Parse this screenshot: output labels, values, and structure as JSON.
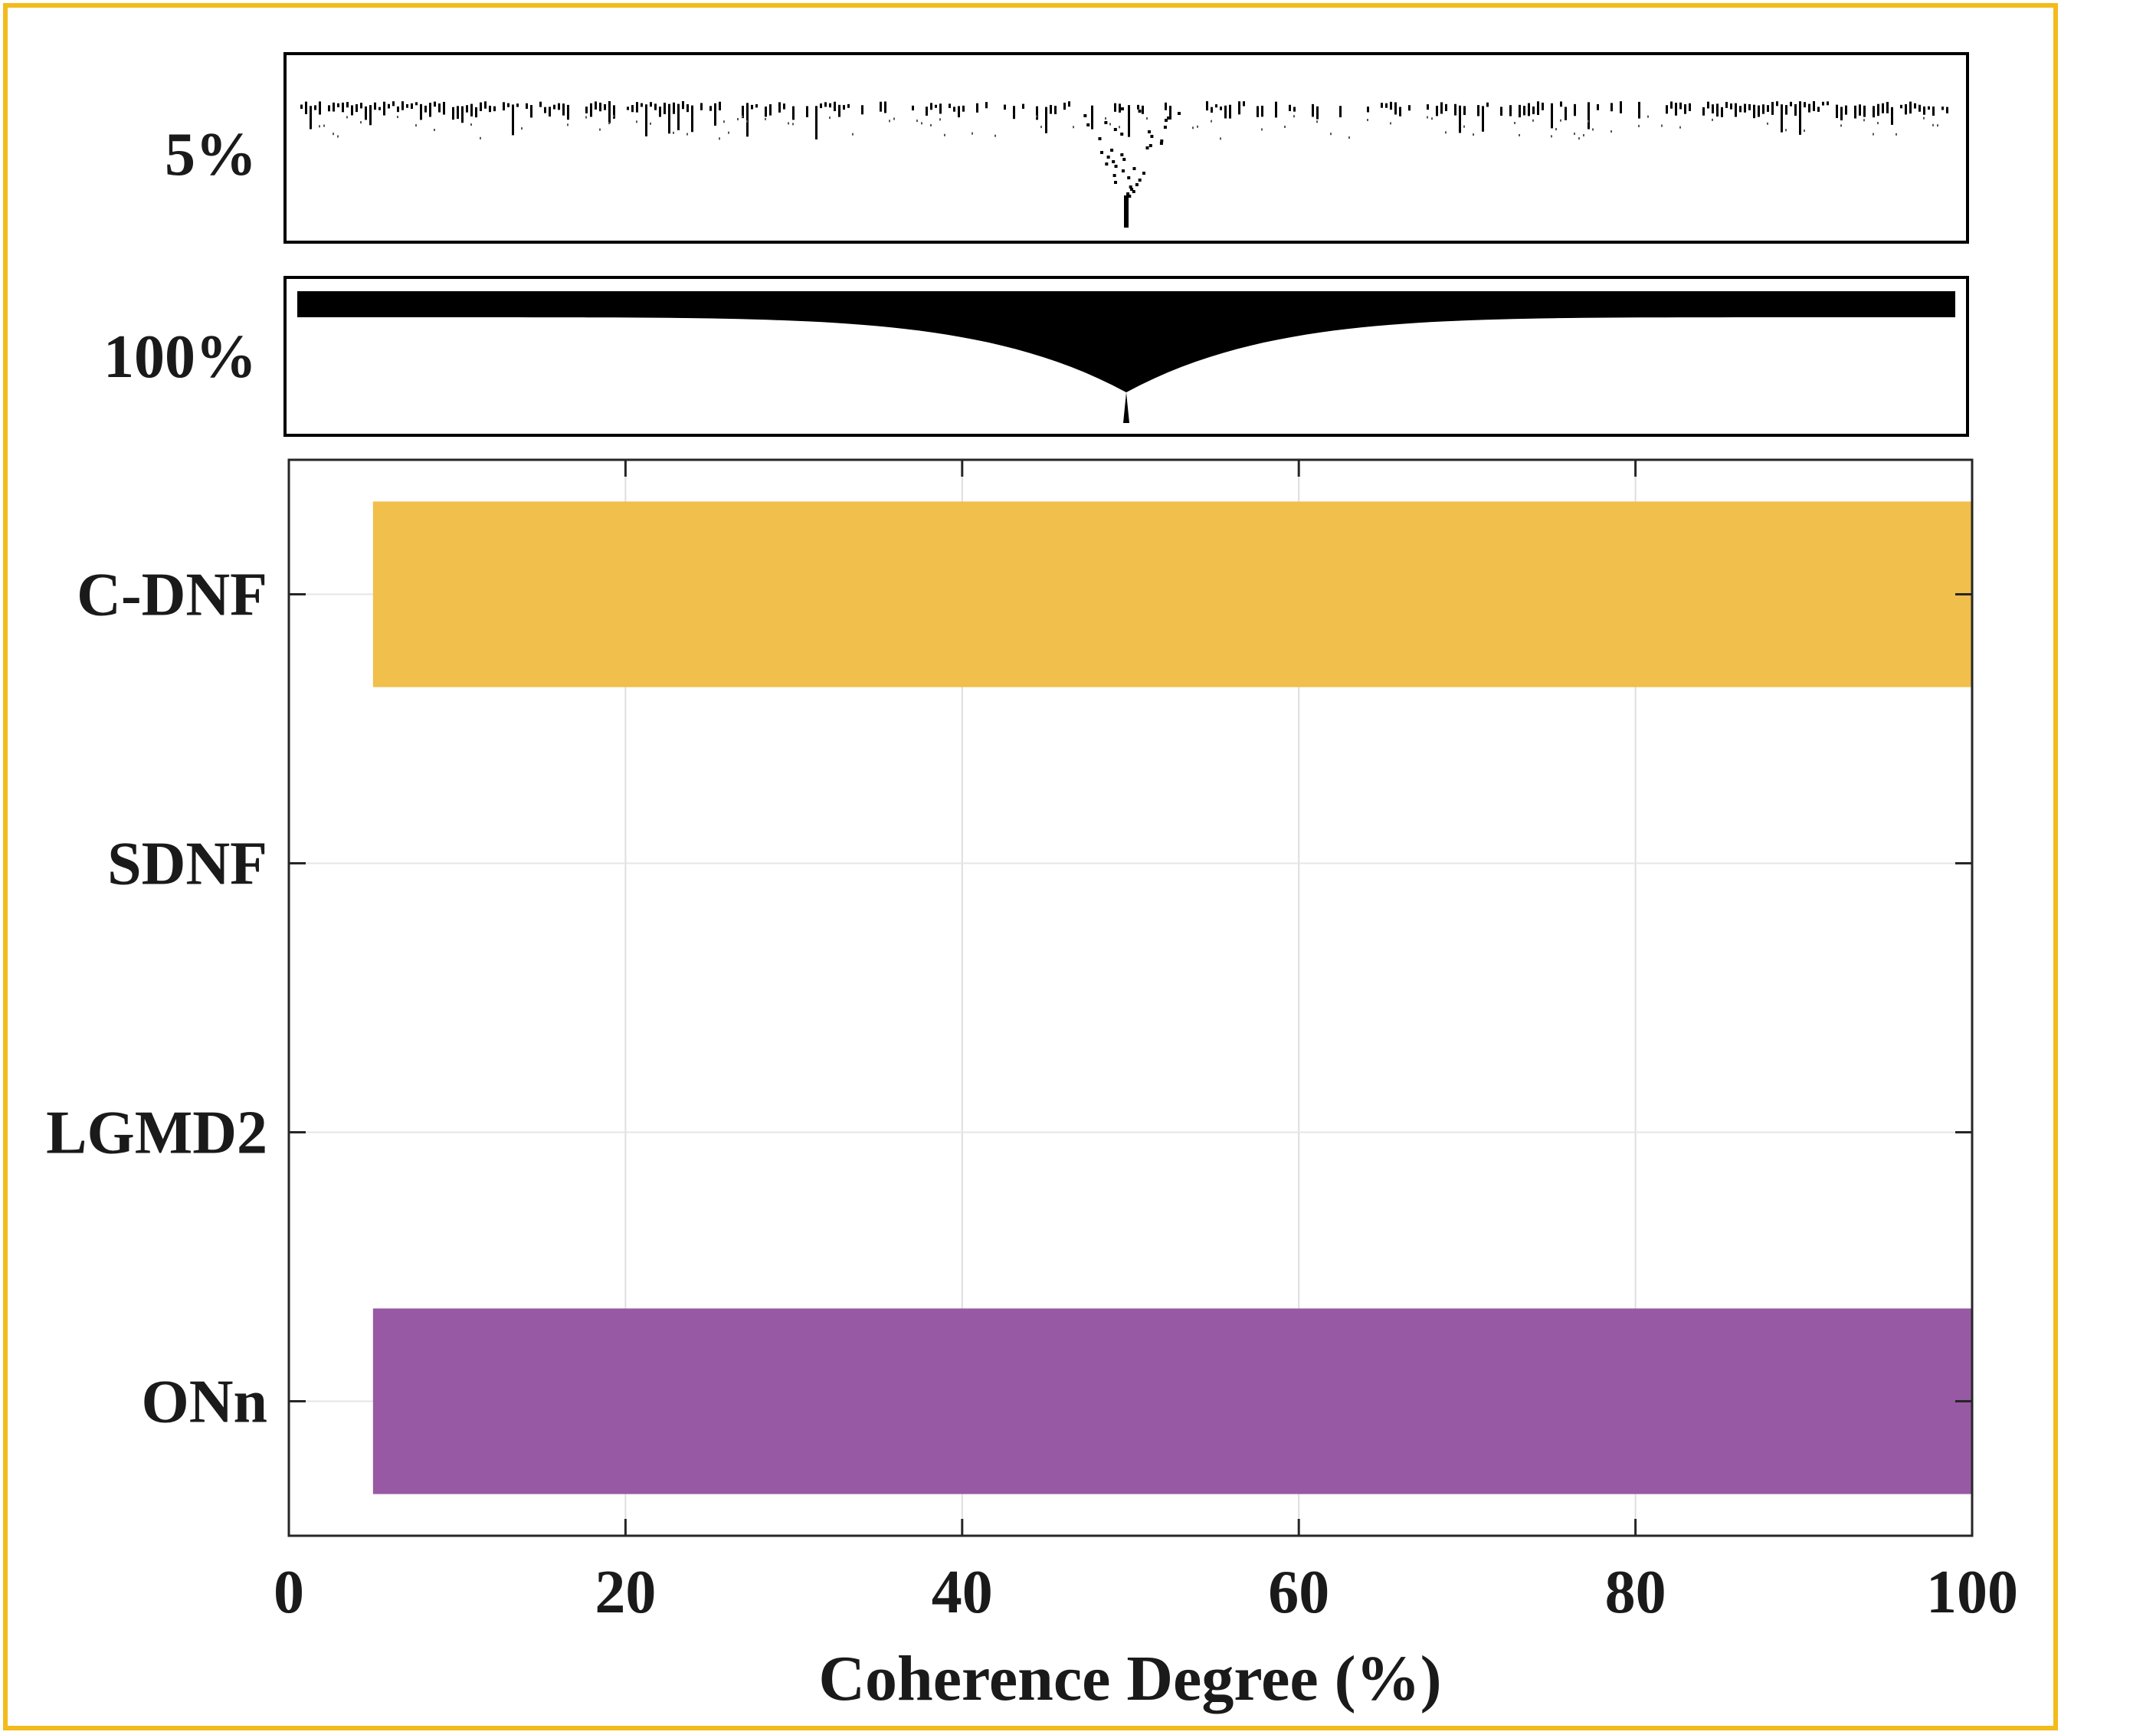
{
  "colors": {
    "frame": "#F3BB1B",
    "series": [
      "#F0BF4C",
      "#FFFFFF",
      "#FFFFFF",
      "#9759A3"
    ]
  },
  "panels": [
    {
      "label": "5%"
    },
    {
      "label": "100%"
    }
  ],
  "chart_data": {
    "type": "bar",
    "orientation": "horizontal",
    "categories": [
      "C-DNF",
      "SDNF",
      "LGMD2",
      "ONn"
    ],
    "bars": [
      {
        "start": 5,
        "end": 100
      },
      {
        "start": 5,
        "end": 5
      },
      {
        "start": 5,
        "end": 5
      },
      {
        "start": 5,
        "end": 100
      }
    ],
    "xlabel": "Coherence Degree (%)",
    "xlim": [
      0,
      100
    ],
    "xticks": [
      "0",
      "20",
      "40",
      "60",
      "80",
      "100"
    ],
    "grid": true
  }
}
